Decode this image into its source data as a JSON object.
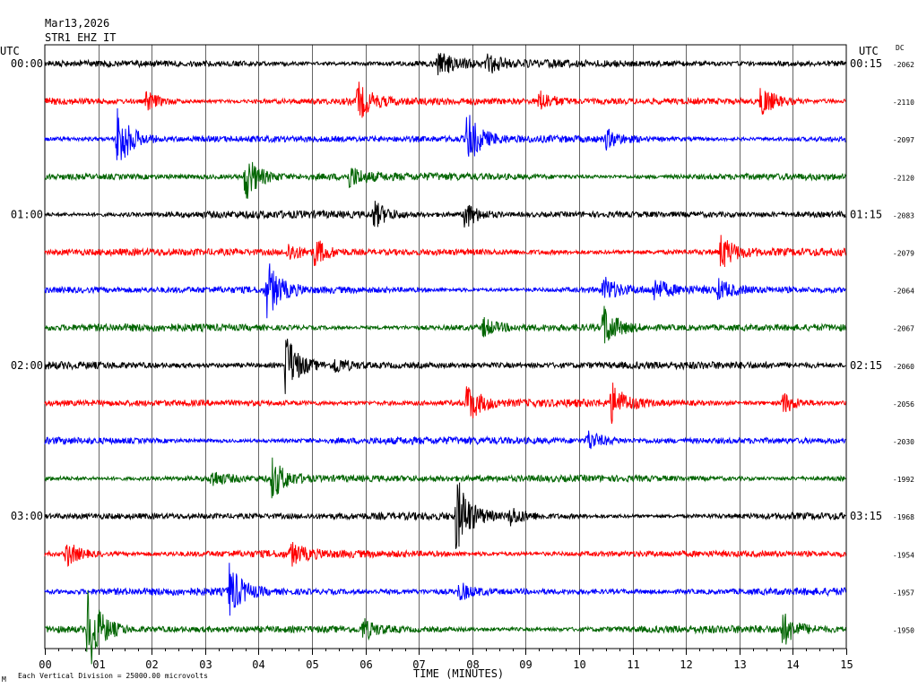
{
  "header": {
    "date": "Mar13,2026",
    "station": "STR1 EHZ IT"
  },
  "left_axis": {
    "title": "UTC"
  },
  "right_axis": {
    "title": "UTC",
    "dc_title": "DC"
  },
  "footer": {
    "scale_note": "Each Vertical Division = 25000.00 microvolts",
    "corner_mark": "M"
  },
  "chart_data": {
    "type": "line",
    "title": "",
    "xlabel": "TIME (MINUTES)",
    "ylabel": "",
    "xlim": [
      0,
      15
    ],
    "x_ticks": [
      "00",
      "01",
      "02",
      "03",
      "04",
      "05",
      "06",
      "07",
      "08",
      "09",
      "10",
      "11",
      "12",
      "13",
      "14",
      "15"
    ],
    "line_colors": [
      "#000000",
      "#ff0000",
      "#0000ff",
      "#006400"
    ],
    "grid": true,
    "left_time_labels": [
      {
        "row": 0,
        "text": "00:00"
      },
      {
        "row": 4,
        "text": "01:00"
      },
      {
        "row": 8,
        "text": "02:00"
      },
      {
        "row": 12,
        "text": "03:00"
      }
    ],
    "right_time_labels": [
      {
        "row": 0,
        "text": "00:15"
      },
      {
        "row": 4,
        "text": "01:15"
      },
      {
        "row": 8,
        "text": "02:15"
      },
      {
        "row": 12,
        "text": "03:15"
      }
    ],
    "dc_offsets": [
      "-2062",
      "-2110",
      "-2097",
      "-2120",
      "-2083",
      "-2079",
      "-2064",
      "-2067",
      "-2060",
      "-2056",
      "-2030",
      "-1992",
      "-1968",
      "-1954",
      "-1957",
      "-1950"
    ],
    "events": [
      {
        "row": 0,
        "minute": 7.35,
        "amplitude": 0.55
      },
      {
        "row": 0,
        "minute": 8.25,
        "amplitude": 0.35
      },
      {
        "row": 1,
        "minute": 1.9,
        "amplitude": 0.35
      },
      {
        "row": 1,
        "minute": 5.85,
        "amplitude": 0.65
      },
      {
        "row": 1,
        "minute": 9.25,
        "amplitude": 0.35
      },
      {
        "row": 1,
        "minute": 13.4,
        "amplitude": 0.55
      },
      {
        "row": 2,
        "minute": 1.35,
        "amplitude": 1.2
      },
      {
        "row": 2,
        "minute": 7.9,
        "amplitude": 0.9
      },
      {
        "row": 2,
        "minute": 10.5,
        "amplitude": 0.3
      },
      {
        "row": 3,
        "minute": 3.75,
        "amplitude": 0.85
      },
      {
        "row": 3,
        "minute": 5.7,
        "amplitude": 0.35
      },
      {
        "row": 4,
        "minute": 6.15,
        "amplitude": 0.45
      },
      {
        "row": 4,
        "minute": 7.85,
        "amplitude": 0.5
      },
      {
        "row": 5,
        "minute": 5.05,
        "amplitude": 0.45
      },
      {
        "row": 5,
        "minute": 4.55,
        "amplitude": 0.3
      },
      {
        "row": 5,
        "minute": 12.65,
        "amplitude": 0.6
      },
      {
        "row": 6,
        "minute": 4.15,
        "amplitude": 1.0
      },
      {
        "row": 6,
        "minute": 10.45,
        "amplitude": 0.45
      },
      {
        "row": 6,
        "minute": 11.4,
        "amplitude": 0.35
      },
      {
        "row": 6,
        "minute": 12.6,
        "amplitude": 0.3
      },
      {
        "row": 7,
        "minute": 10.45,
        "amplitude": 0.75
      },
      {
        "row": 7,
        "minute": 8.2,
        "amplitude": 0.3
      },
      {
        "row": 8,
        "minute": 4.5,
        "amplitude": 1.15
      },
      {
        "row": 8,
        "minute": 5.4,
        "amplitude": 0.3
      },
      {
        "row": 9,
        "minute": 7.9,
        "amplitude": 0.7
      },
      {
        "row": 9,
        "minute": 10.6,
        "amplitude": 0.65
      },
      {
        "row": 9,
        "minute": 13.8,
        "amplitude": 0.4
      },
      {
        "row": 10,
        "minute": 10.15,
        "amplitude": 0.35
      },
      {
        "row": 11,
        "minute": 4.25,
        "amplitude": 0.7
      },
      {
        "row": 11,
        "minute": 3.1,
        "amplitude": 0.3
      },
      {
        "row": 12,
        "minute": 7.7,
        "amplitude": 1.35
      },
      {
        "row": 12,
        "minute": 8.7,
        "amplitude": 0.3
      },
      {
        "row": 13,
        "minute": 0.4,
        "amplitude": 0.45
      },
      {
        "row": 13,
        "minute": 4.6,
        "amplitude": 0.35
      },
      {
        "row": 14,
        "minute": 3.45,
        "amplitude": 0.9
      },
      {
        "row": 14,
        "minute": 7.75,
        "amplitude": 0.3
      },
      {
        "row": 15,
        "minute": 0.8,
        "amplitude": 1.5
      },
      {
        "row": 15,
        "minute": 5.95,
        "amplitude": 0.35
      },
      {
        "row": 15,
        "minute": 13.8,
        "amplitude": 0.55
      }
    ]
  }
}
